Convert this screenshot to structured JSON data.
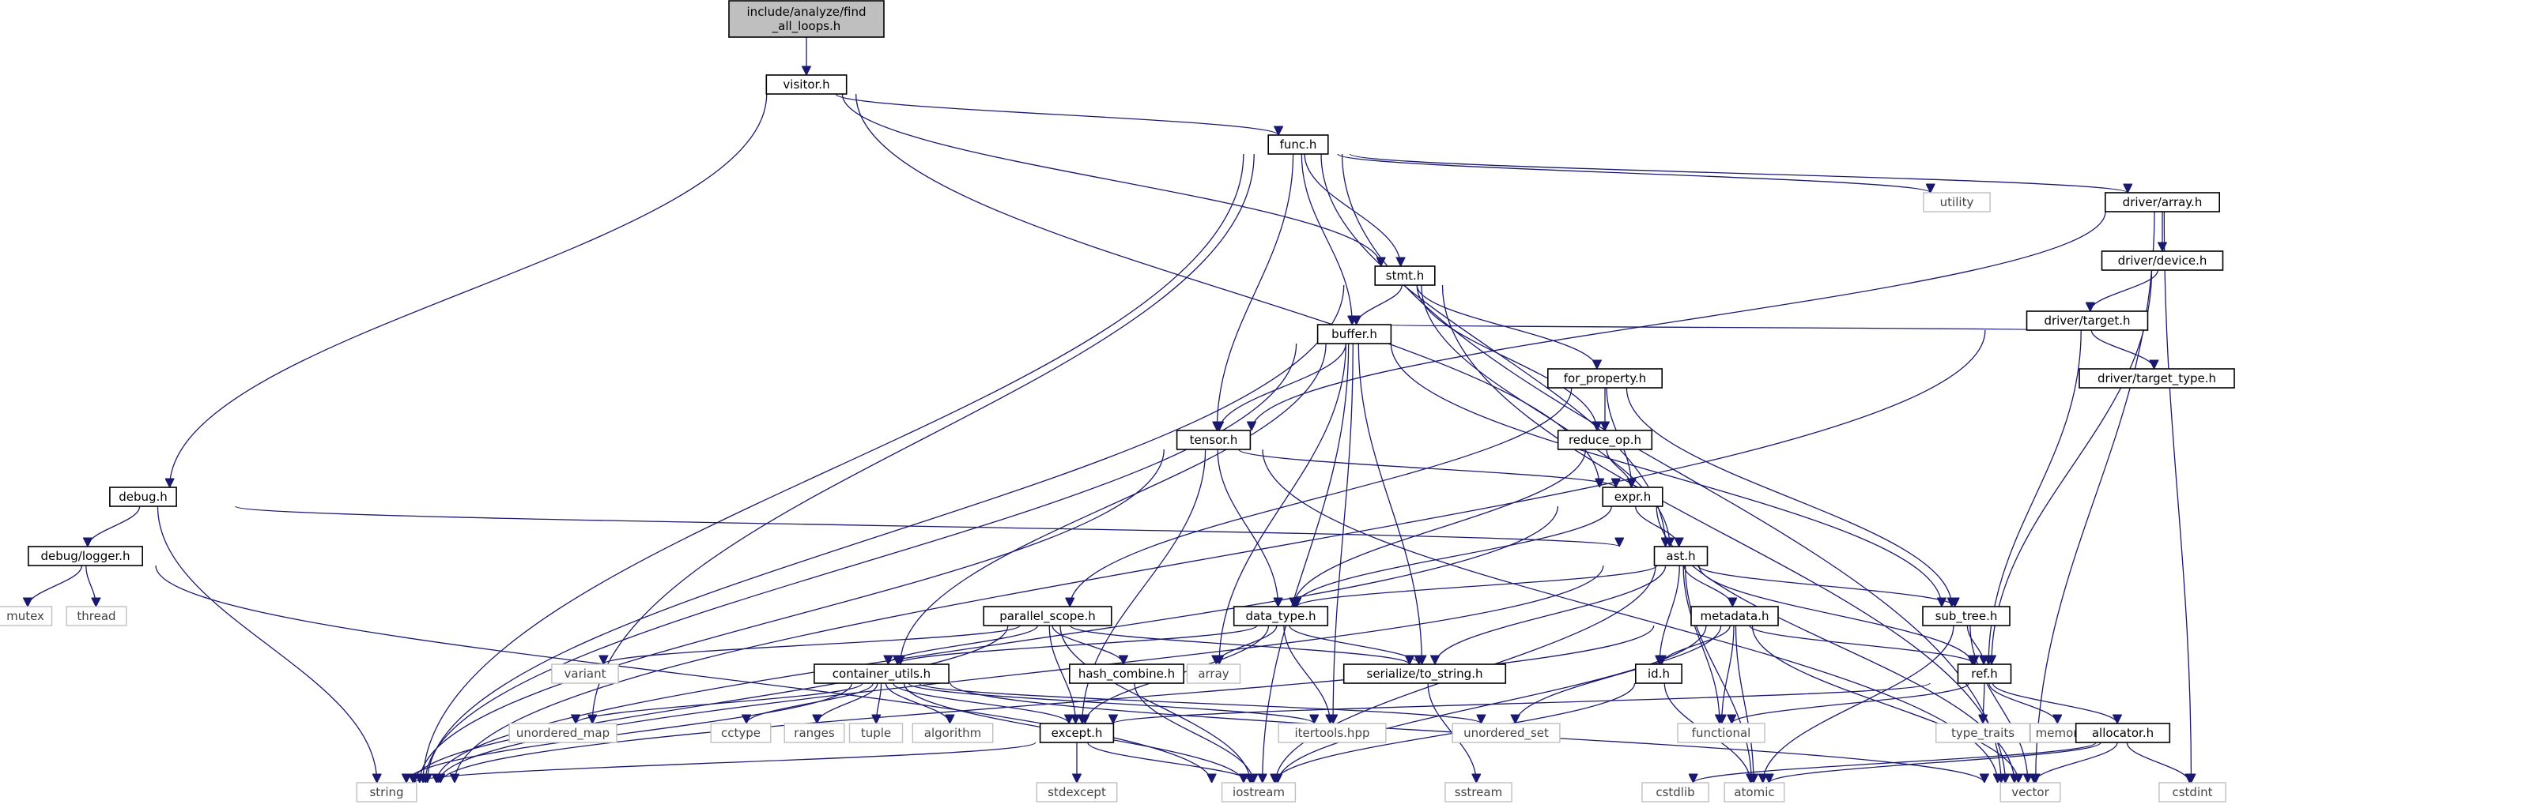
{
  "graph": {
    "nodes": [
      {
        "id": "root",
        "label": "include/analyze/find\n_all_loops.h",
        "kind": "root"
      },
      {
        "id": "visitor",
        "label": "visitor.h",
        "kind": "doc"
      },
      {
        "id": "func",
        "label": "func.h",
        "kind": "doc"
      },
      {
        "id": "debug",
        "label": "debug.h",
        "kind": "doc"
      },
      {
        "id": "logger",
        "label": "debug/logger.h",
        "kind": "doc"
      },
      {
        "id": "mutex",
        "label": "mutex",
        "kind": "ext"
      },
      {
        "id": "thread",
        "label": "thread",
        "kind": "ext"
      },
      {
        "id": "utility",
        "label": "utility",
        "kind": "ext"
      },
      {
        "id": "darray",
        "label": "driver/array.h",
        "kind": "doc"
      },
      {
        "id": "ddevice",
        "label": "driver/device.h",
        "kind": "doc"
      },
      {
        "id": "dtarget",
        "label": "driver/target.h",
        "kind": "doc"
      },
      {
        "id": "dtargettype",
        "label": "driver/target_type.h",
        "kind": "doc"
      },
      {
        "id": "stmt",
        "label": "stmt.h",
        "kind": "doc"
      },
      {
        "id": "buffer",
        "label": "buffer.h",
        "kind": "doc"
      },
      {
        "id": "forprop",
        "label": "for_property.h",
        "kind": "doc"
      },
      {
        "id": "tensor",
        "label": "tensor.h",
        "kind": "doc"
      },
      {
        "id": "reduceop",
        "label": "reduce_op.h",
        "kind": "doc"
      },
      {
        "id": "expr",
        "label": "expr.h",
        "kind": "doc"
      },
      {
        "id": "ast",
        "label": "ast.h",
        "kind": "doc"
      },
      {
        "id": "parscope",
        "label": "parallel_scope.h",
        "kind": "doc"
      },
      {
        "id": "datatype",
        "label": "data_type.h",
        "kind": "doc"
      },
      {
        "id": "metadata",
        "label": "metadata.h",
        "kind": "doc"
      },
      {
        "id": "subtree",
        "label": "sub_tree.h",
        "kind": "doc"
      },
      {
        "id": "variant",
        "label": "variant",
        "kind": "ext"
      },
      {
        "id": "hashcomb",
        "label": "hash_combine.h",
        "kind": "doc"
      },
      {
        "id": "contutils",
        "label": "container_utils.h",
        "kind": "doc"
      },
      {
        "id": "array",
        "label": "array",
        "kind": "ext"
      },
      {
        "id": "serialize",
        "label": "serialize/to_string.h",
        "kind": "doc"
      },
      {
        "id": "id",
        "label": "id.h",
        "kind": "doc"
      },
      {
        "id": "ref",
        "label": "ref.h",
        "kind": "doc"
      },
      {
        "id": "umap",
        "label": "unordered_map",
        "kind": "ext"
      },
      {
        "id": "cctype",
        "label": "cctype",
        "kind": "ext"
      },
      {
        "id": "ranges",
        "label": "ranges",
        "kind": "ext"
      },
      {
        "id": "tuple",
        "label": "tuple",
        "kind": "ext"
      },
      {
        "id": "algorithm",
        "label": "algorithm",
        "kind": "ext"
      },
      {
        "id": "itertools",
        "label": "itertools.hpp",
        "kind": "ext"
      },
      {
        "id": "uset",
        "label": "unordered_set",
        "kind": "ext"
      },
      {
        "id": "sstream",
        "label": "sstream",
        "kind": "ext"
      },
      {
        "id": "functional",
        "label": "functional",
        "kind": "ext"
      },
      {
        "id": "typetraits",
        "label": "type_traits",
        "kind": "ext"
      },
      {
        "id": "memory",
        "label": "memory",
        "kind": "ext"
      },
      {
        "id": "allocator",
        "label": "allocator.h",
        "kind": "doc"
      },
      {
        "id": "except",
        "label": "except.h",
        "kind": "doc"
      },
      {
        "id": "string",
        "label": "string",
        "kind": "ext"
      },
      {
        "id": "stdexcept",
        "label": "stdexcept",
        "kind": "ext"
      },
      {
        "id": "iostream",
        "label": "iostream",
        "kind": "ext"
      },
      {
        "id": "cstdlib",
        "label": "cstdlib",
        "kind": "ext"
      },
      {
        "id": "atomic",
        "label": "atomic",
        "kind": "ext"
      },
      {
        "id": "vector",
        "label": "vector",
        "kind": "ext"
      },
      {
        "id": "cstdint",
        "label": "cstdint",
        "kind": "ext"
      }
    ],
    "edges": [
      [
        "root",
        "visitor"
      ],
      [
        "visitor",
        "debug"
      ],
      [
        "visitor",
        "func"
      ],
      [
        "visitor",
        "stmt"
      ],
      [
        "visitor",
        "expr"
      ],
      [
        "func",
        "string"
      ],
      [
        "func",
        "umap"
      ],
      [
        "func",
        "tensor"
      ],
      [
        "func",
        "buffer"
      ],
      [
        "func",
        "stmt"
      ],
      [
        "func",
        "utility"
      ],
      [
        "func",
        "darray"
      ],
      [
        "func",
        "ast"
      ],
      [
        "func",
        "vector"
      ],
      [
        "darray",
        "ddevice"
      ],
      [
        "darray",
        "tensor"
      ],
      [
        "darray",
        "vector"
      ],
      [
        "darray",
        "cstdint"
      ],
      [
        "ddevice",
        "dtarget"
      ],
      [
        "ddevice",
        "ref"
      ],
      [
        "dtarget",
        "dtargettype"
      ],
      [
        "dtarget",
        "buffer"
      ],
      [
        "dtarget",
        "ref"
      ],
      [
        "dtarget",
        "string"
      ],
      [
        "stmt",
        "string"
      ],
      [
        "stmt",
        "buffer"
      ],
      [
        "stmt",
        "forprop"
      ],
      [
        "stmt",
        "reduceop"
      ],
      [
        "stmt",
        "ast"
      ],
      [
        "stmt",
        "vector"
      ],
      [
        "buffer",
        "string"
      ],
      [
        "buffer",
        "tensor"
      ],
      [
        "buffer",
        "contutils"
      ],
      [
        "buffer",
        "array"
      ],
      [
        "buffer",
        "itertools"
      ],
      [
        "buffer",
        "serialize"
      ],
      [
        "buffer",
        "subtree"
      ],
      [
        "buffer",
        "iostream"
      ],
      [
        "forprop",
        "reduceop"
      ],
      [
        "forprop",
        "expr"
      ],
      [
        "forprop",
        "parscope"
      ],
      [
        "forprop",
        "subtree"
      ],
      [
        "tensor",
        "string"
      ],
      [
        "tensor",
        "expr"
      ],
      [
        "tensor",
        "datatype"
      ],
      [
        "tensor",
        "except"
      ],
      [
        "tensor",
        "vector"
      ],
      [
        "reduceop",
        "expr"
      ],
      [
        "reduceop",
        "datatype"
      ],
      [
        "expr",
        "string"
      ],
      [
        "expr",
        "ast"
      ],
      [
        "expr",
        "datatype"
      ],
      [
        "expr",
        "vector"
      ],
      [
        "debug",
        "logger"
      ],
      [
        "debug",
        "string"
      ],
      [
        "debug",
        "ast"
      ],
      [
        "logger",
        "mutex"
      ],
      [
        "logger",
        "thread"
      ],
      [
        "logger",
        "iostream"
      ],
      [
        "ast",
        "string"
      ],
      [
        "ast",
        "datatype"
      ],
      [
        "ast",
        "metadata"
      ],
      [
        "ast",
        "subtree"
      ],
      [
        "ast",
        "serialize"
      ],
      [
        "ast",
        "id"
      ],
      [
        "ast",
        "ref"
      ],
      [
        "ast",
        "functional"
      ],
      [
        "ast",
        "iostream"
      ],
      [
        "ast",
        "atomic"
      ],
      [
        "parscope",
        "string"
      ],
      [
        "parscope",
        "variant"
      ],
      [
        "parscope",
        "hashcomb"
      ],
      [
        "parscope",
        "contutils"
      ],
      [
        "parscope",
        "serialize"
      ],
      [
        "parscope",
        "except"
      ],
      [
        "parscope",
        "iostream"
      ],
      [
        "datatype",
        "contutils"
      ],
      [
        "datatype",
        "array"
      ],
      [
        "datatype",
        "serialize"
      ],
      [
        "datatype",
        "itertools"
      ],
      [
        "datatype",
        "except"
      ],
      [
        "metadata",
        "string"
      ],
      [
        "metadata",
        "id"
      ],
      [
        "metadata",
        "ref"
      ],
      [
        "metadata",
        "uset"
      ],
      [
        "metadata",
        "functional"
      ],
      [
        "metadata",
        "iostream"
      ],
      [
        "metadata",
        "atomic"
      ],
      [
        "metadata",
        "vector"
      ],
      [
        "subtree",
        "ref"
      ],
      [
        "subtree",
        "atomic"
      ],
      [
        "subtree",
        "vector"
      ],
      [
        "hashcomb",
        "iostream"
      ],
      [
        "contutils",
        "umap"
      ],
      [
        "contutils",
        "cctype"
      ],
      [
        "contutils",
        "ranges"
      ],
      [
        "contutils",
        "tuple"
      ],
      [
        "contutils",
        "algorithm"
      ],
      [
        "contutils",
        "except"
      ],
      [
        "contutils",
        "itertools"
      ],
      [
        "contutils",
        "uset"
      ],
      [
        "contutils",
        "string"
      ],
      [
        "contutils",
        "iostream"
      ],
      [
        "contutils",
        "vector"
      ],
      [
        "serialize",
        "sstream"
      ],
      [
        "id",
        "iostream"
      ],
      [
        "id",
        "atomic"
      ],
      [
        "ref",
        "except"
      ],
      [
        "ref",
        "functional"
      ],
      [
        "ref",
        "typetraits"
      ],
      [
        "ref",
        "memory"
      ],
      [
        "ref",
        "allocator"
      ],
      [
        "allocator",
        "cstdlib"
      ],
      [
        "allocator",
        "atomic"
      ],
      [
        "allocator",
        "vector"
      ],
      [
        "allocator",
        "cstdint"
      ],
      [
        "except",
        "string"
      ],
      [
        "except",
        "stdexcept"
      ],
      [
        "except",
        "iostream"
      ]
    ]
  }
}
